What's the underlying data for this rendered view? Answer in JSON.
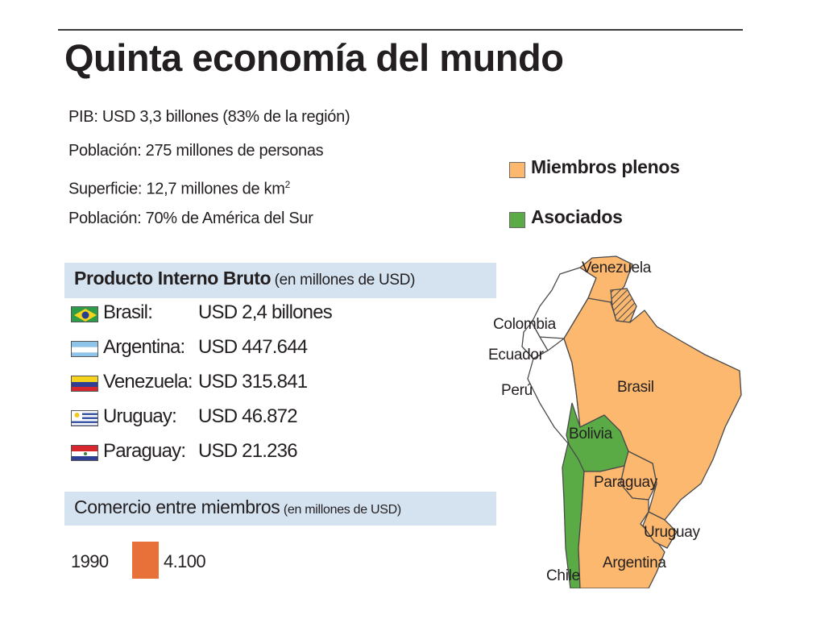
{
  "title": "Quinta economía del mundo",
  "facts": {
    "gdp": "PIB: USD 3,3 billones (83% de la región)",
    "population": "Población: 275 millones de personas",
    "area_prefix": "Superficie: 12,7 millones de km",
    "area_sup": "2",
    "population_share": "Población: 70% de América del Sur"
  },
  "legend": [
    {
      "label": "Miembros plenos",
      "color": "#fbb86e"
    },
    {
      "label": "Asociados",
      "color": "#5aab46"
    }
  ],
  "gdp_section": {
    "heading": "Producto Interno Bruto",
    "unit": "(en millones de USD)",
    "rows": [
      {
        "country": "Brasil:",
        "value": "USD 2,4 billones",
        "flag": "brazil-flag-icon"
      },
      {
        "country": "Argentina:",
        "value": "USD 447.644",
        "flag": "argentina-flag-icon"
      },
      {
        "country": "Venezuela:",
        "value": "USD 315.841",
        "flag": "venezuela-flag-icon"
      },
      {
        "country": "Uruguay:",
        "value": "USD 46.872",
        "flag": "uruguay-flag-icon"
      },
      {
        "country": "Paraguay:",
        "value": "USD 21.236",
        "flag": "paraguay-flag-icon"
      }
    ]
  },
  "trade_section": {
    "heading": "Comercio entre miembros",
    "unit": "(en millones de USD)",
    "year": "1990",
    "value": "4.100",
    "bar_color": "#e8713a"
  },
  "map": {
    "labels": {
      "venezuela": "Venezuela",
      "colombia": "Colombia",
      "ecuador": "Ecuador",
      "peru": "Perú",
      "brasil": "Brasil",
      "bolivia": "Bolivia",
      "paraguay": "Paraguay",
      "uruguay": "Uruguay",
      "argentina": "Argentina",
      "chile": "Chile"
    },
    "colors": {
      "full_member": "#fbb86e",
      "associate": "#5aab46",
      "other": "#ffffff",
      "border": "#4a4a4a"
    }
  }
}
